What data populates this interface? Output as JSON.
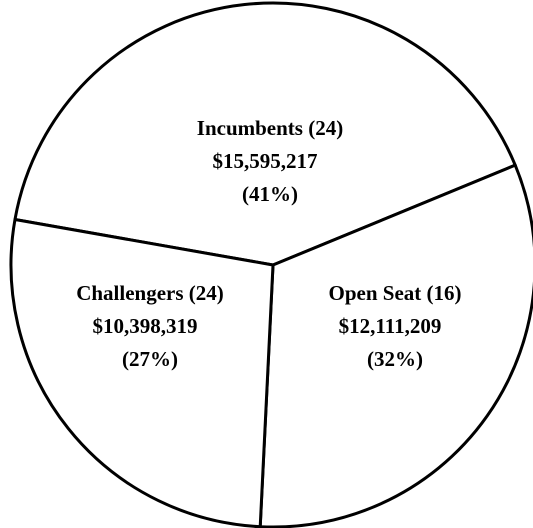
{
  "chart_data": {
    "type": "pie",
    "categories": [
      "Incumbents (24)",
      "Open Seat (16)",
      "Challengers (24)"
    ],
    "amounts": [
      "$15,595,217",
      "$12,111,209",
      "$10,398,319"
    ],
    "values": [
      41,
      32,
      27
    ],
    "value_labels": [
      "(41%)",
      "(32%)",
      "(27%)"
    ]
  }
}
